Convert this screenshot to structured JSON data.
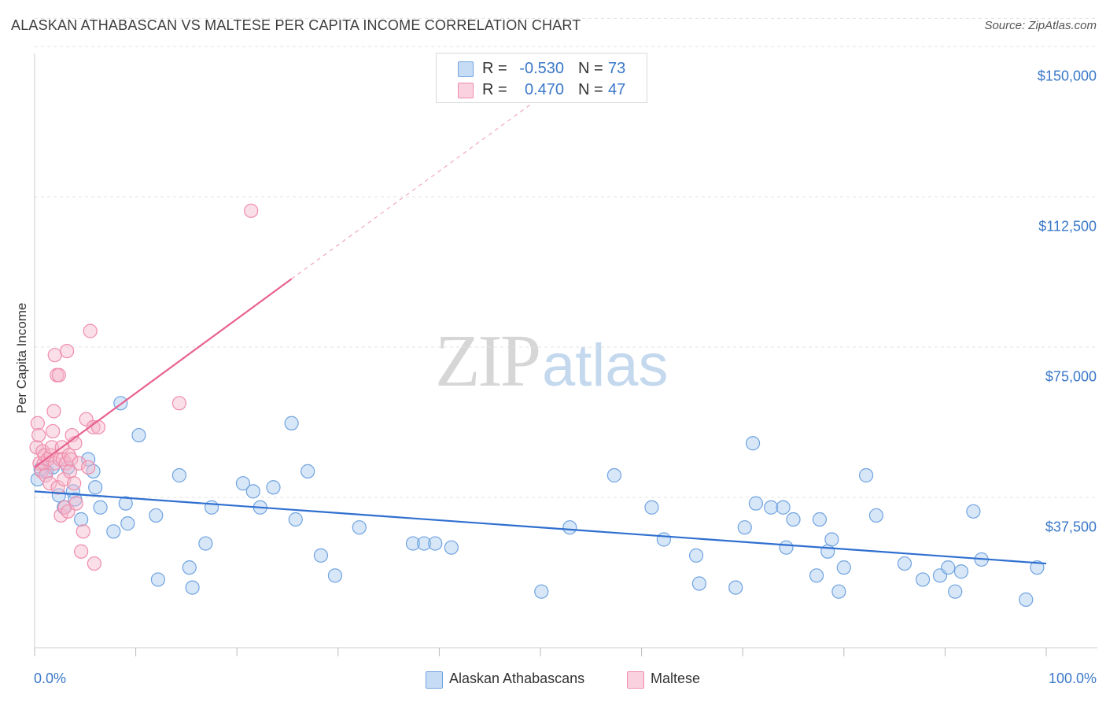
{
  "title": "ALASKAN ATHABASCAN VS MALTESE PER CAPITA INCOME CORRELATION CHART",
  "source": "Source: ZipAtlas.com",
  "watermark": {
    "zip": "ZIP",
    "atlas": "atlas"
  },
  "stats": [
    {
      "r_label": "R =",
      "r_value": "-0.530",
      "n_label": "N =",
      "n_value": "73",
      "color": "#a9c9f0"
    },
    {
      "r_label": "R =",
      "r_value": "0.470",
      "n_label": "N =",
      "n_value": "47",
      "color": "#f5b8cb"
    }
  ],
  "legend": [
    {
      "label": "Alaskan Athabascans",
      "color": "#a9c9f0"
    },
    {
      "label": "Maltese",
      "color": "#f5b8cb"
    }
  ],
  "chart_data": {
    "type": "scatter",
    "title": "ALASKAN ATHABASCAN VS MALTESE PER CAPITA INCOME CORRELATION CHART",
    "ylabel": "Per Capita Income",
    "xlabel": "",
    "xlim": [
      0,
      100
    ],
    "ylim": [
      0,
      157000
    ],
    "x_tick_labels": [
      "0.0%",
      "100.0%"
    ],
    "y_ticks": [
      37500,
      75000,
      112500,
      150000
    ],
    "y_tick_labels": [
      "$37,500",
      "$75,000",
      "$112,500",
      "$150,000"
    ],
    "grid": true,
    "legend_position": "bottom",
    "series": [
      {
        "name": "Alaskan Athabascans",
        "color": "#6fa3e0",
        "line_color": "#2f6fd0",
        "trend": {
          "x": [
            0,
            100
          ],
          "y": [
            39000,
            21000
          ],
          "dashed_extension": false
        },
        "points": [
          [
            0.3,
            42000
          ],
          [
            1.2,
            44000
          ],
          [
            1.8,
            45000
          ],
          [
            2.4,
            38000
          ],
          [
            2.9,
            35000
          ],
          [
            3.3,
            45000
          ],
          [
            3.8,
            39000
          ],
          [
            4.0,
            37000
          ],
          [
            4.6,
            32000
          ],
          [
            5.3,
            47000
          ],
          [
            5.8,
            44000
          ],
          [
            6.0,
            40000
          ],
          [
            6.5,
            35000
          ],
          [
            7.8,
            29000
          ],
          [
            8.5,
            61000
          ],
          [
            9.0,
            36000
          ],
          [
            9.2,
            31000
          ],
          [
            10.3,
            53000
          ],
          [
            12.0,
            33000
          ],
          [
            12.2,
            17000
          ],
          [
            14.3,
            43000
          ],
          [
            15.3,
            20000
          ],
          [
            15.6,
            15000
          ],
          [
            16.9,
            26000
          ],
          [
            17.5,
            35000
          ],
          [
            20.6,
            41000
          ],
          [
            21.6,
            39000
          ],
          [
            22.3,
            35000
          ],
          [
            23.6,
            40000
          ],
          [
            25.4,
            56000
          ],
          [
            25.8,
            32000
          ],
          [
            27.0,
            44000
          ],
          [
            28.3,
            23000
          ],
          [
            29.7,
            18000
          ],
          [
            32.1,
            30000
          ],
          [
            37.4,
            26000
          ],
          [
            38.5,
            26000
          ],
          [
            39.6,
            26000
          ],
          [
            41.2,
            25000
          ],
          [
            50.1,
            14000
          ],
          [
            52.9,
            30000
          ],
          [
            57.3,
            43000
          ],
          [
            61.0,
            35000
          ],
          [
            62.2,
            27000
          ],
          [
            65.4,
            23000
          ],
          [
            65.7,
            16000
          ],
          [
            69.3,
            15000
          ],
          [
            70.2,
            30000
          ],
          [
            71.0,
            51000
          ],
          [
            71.3,
            36000
          ],
          [
            72.8,
            35000
          ],
          [
            74.0,
            35000
          ],
          [
            74.3,
            25000
          ],
          [
            75.0,
            32000
          ],
          [
            77.3,
            18000
          ],
          [
            77.6,
            32000
          ],
          [
            78.4,
            24000
          ],
          [
            78.8,
            27000
          ],
          [
            79.5,
            14000
          ],
          [
            80.0,
            20000
          ],
          [
            82.2,
            43000
          ],
          [
            83.2,
            33000
          ],
          [
            86.0,
            21000
          ],
          [
            87.8,
            17000
          ],
          [
            89.5,
            18000
          ],
          [
            90.3,
            20000
          ],
          [
            91.0,
            14000
          ],
          [
            91.6,
            19000
          ],
          [
            92.8,
            34000
          ],
          [
            93.6,
            22000
          ],
          [
            98.0,
            12000
          ],
          [
            99.1,
            20000
          ],
          [
            0.6,
            44500
          ]
        ]
      },
      {
        "name": "Maltese",
        "color": "#f08cab",
        "line_color": "#e8628e",
        "trend": {
          "x": [
            0,
            25.4
          ],
          "y": [
            45000,
            92000
          ],
          "extension_to": [
            52,
            141000
          ],
          "dashed_extension": true
        },
        "points": [
          [
            0.2,
            50000
          ],
          [
            0.3,
            56000
          ],
          [
            0.4,
            53000
          ],
          [
            0.5,
            46000
          ],
          [
            0.7,
            44000
          ],
          [
            0.8,
            49000
          ],
          [
            0.9,
            46000
          ],
          [
            1.0,
            48000
          ],
          [
            1.1,
            43000
          ],
          [
            1.3,
            47000
          ],
          [
            1.5,
            41000
          ],
          [
            1.6,
            48000
          ],
          [
            1.7,
            50000
          ],
          [
            1.8,
            54000
          ],
          [
            1.9,
            59000
          ],
          [
            2.0,
            46000
          ],
          [
            2.0,
            73000
          ],
          [
            2.2,
            68000
          ],
          [
            2.3,
            40000
          ],
          [
            2.4,
            68000
          ],
          [
            2.5,
            47000
          ],
          [
            2.6,
            33000
          ],
          [
            2.7,
            50000
          ],
          [
            2.8,
            47000
          ],
          [
            2.9,
            42000
          ],
          [
            3.0,
            35000
          ],
          [
            3.1,
            46000
          ],
          [
            3.2,
            74000
          ],
          [
            3.3,
            34000
          ],
          [
            3.4,
            48000
          ],
          [
            3.5,
            44000
          ],
          [
            3.6,
            47000
          ],
          [
            3.7,
            53000
          ],
          [
            3.9,
            41000
          ],
          [
            4.0,
            51000
          ],
          [
            4.1,
            36000
          ],
          [
            4.4,
            46000
          ],
          [
            4.6,
            24000
          ],
          [
            4.8,
            29000
          ],
          [
            5.1,
            57000
          ],
          [
            5.3,
            45000
          ],
          [
            5.5,
            79000
          ],
          [
            5.8,
            55000
          ],
          [
            5.9,
            21000
          ],
          [
            6.3,
            55000
          ],
          [
            14.3,
            61000
          ],
          [
            21.4,
            109000
          ]
        ]
      }
    ]
  }
}
